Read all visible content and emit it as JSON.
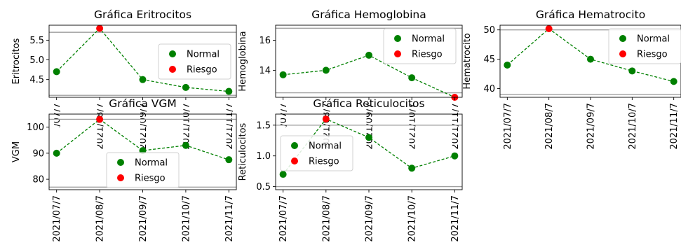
{
  "figure": {
    "dates": [
      "2021/07/7",
      "2021/08/7",
      "2021/09/7",
      "2021/10/7",
      "2021/11/7"
    ],
    "legend": {
      "normal_label": "Normal",
      "risk_label": "Riesgo"
    },
    "colors": {
      "normal": "#008000",
      "risk": "#ff0000",
      "line": "#008000",
      "threshold": "#a0a0a0"
    }
  },
  "chart_data": [
    {
      "type": "line",
      "title": "Gráfica Eritrocitos",
      "ylabel": "Eritrocitos",
      "x": [
        "2021/07/7",
        "2021/08/7",
        "2021/09/7",
        "2021/10/7",
        "2021/11/7"
      ],
      "values": [
        4.7,
        5.8,
        4.5,
        4.3,
        4.2
      ],
      "status": [
        "Normal",
        "Riesgo",
        "Normal",
        "Normal",
        "Normal"
      ],
      "thresholds": [
        4.1,
        5.7
      ],
      "ylim": [
        4.05,
        5.88
      ],
      "yticks": [
        4.5,
        5.0,
        5.5
      ],
      "ytick_labels": [
        "4.5",
        "5.0",
        "5.5"
      ],
      "legend_position": "center-right"
    },
    {
      "type": "line",
      "title": "Gráfica Hemoglobina",
      "ylabel": "Hemoglobina",
      "x": [
        "2021/07/7",
        "2021/08/7",
        "2021/09/7",
        "2021/10/7",
        "2021/11/7"
      ],
      "values": [
        13.7,
        14.0,
        15.0,
        13.5,
        12.2
      ],
      "status": [
        "Normal",
        "Normal",
        "Normal",
        "Normal",
        "Riesgo"
      ],
      "thresholds": [
        12.5,
        16.8
      ],
      "ylim": [
        12.2,
        17.0
      ],
      "yticks": [
        14,
        16
      ],
      "ytick_labels": [
        "14",
        "16"
      ],
      "legend_position": "upper-right"
    },
    {
      "type": "line",
      "title": "Gráfica Hematrocito",
      "ylabel": "Hematrocito",
      "x": [
        "2021/07/7",
        "2021/08/7",
        "2021/09/7",
        "2021/10/7",
        "2021/11/7"
      ],
      "values": [
        44,
        50.2,
        45,
        43,
        41.2
      ],
      "status": [
        "Normal",
        "Riesgo",
        "Normal",
        "Normal",
        "Normal"
      ],
      "thresholds": [
        39,
        50
      ],
      "ylim": [
        38.5,
        50.8
      ],
      "yticks": [
        40,
        45,
        50
      ],
      "ytick_labels": [
        "40",
        "45",
        "50"
      ],
      "legend_position": "upper-right"
    },
    {
      "type": "line",
      "title": "Gráfica VGM",
      "ylabel": "VGM",
      "x": [
        "2021/07/7",
        "2021/08/7",
        "2021/09/7",
        "2021/10/7",
        "2021/11/7"
      ],
      "values": [
        90,
        103,
        91,
        93,
        87.5
      ],
      "status": [
        "Normal",
        "Riesgo",
        "Normal",
        "Normal",
        "Normal"
      ],
      "thresholds": [
        77,
        103
      ],
      "ylim": [
        76,
        105
      ],
      "yticks": [
        80,
        90,
        100
      ],
      "ytick_labels": [
        "80",
        "90",
        "100"
      ],
      "legend_position": "lower-center"
    },
    {
      "type": "line",
      "title": "Gráfica Reticulocitos",
      "ylabel": "Reticulocitos",
      "x": [
        "2021/07/7",
        "2021/08/7",
        "2021/09/7",
        "2021/10/7",
        "2021/11/7"
      ],
      "values": [
        0.7,
        1.6,
        1.3,
        0.8,
        1.0
      ],
      "status": [
        "Normal",
        "Riesgo",
        "Normal",
        "Normal",
        "Normal"
      ],
      "thresholds": [
        0.5,
        1.5
      ],
      "ylim": [
        0.45,
        1.68
      ],
      "yticks": [
        0.5,
        1.0,
        1.5
      ],
      "ytick_labels": [
        "0.5",
        "1.0",
        "1.5"
      ],
      "legend_position": "center-left"
    }
  ]
}
